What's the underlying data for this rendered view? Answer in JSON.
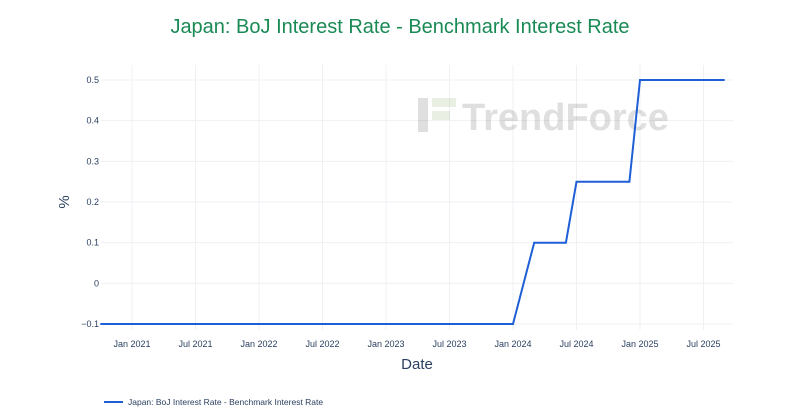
{
  "chart_data": {
    "type": "line",
    "title": "Japan: BoJ Interest Rate - Benchmark Interest Rate",
    "xlabel": "Date",
    "ylabel": "%",
    "ylim": [
      -0.1,
      0.5
    ],
    "xlim": [
      "2020-10",
      "2025-09"
    ],
    "grid": true,
    "legend_position": "bottom-left",
    "yticks": [
      "−0.1",
      "0",
      "0.1",
      "0.2",
      "0.3",
      "0.4",
      "0.5"
    ],
    "ytick_values": [
      -0.1,
      0,
      0.1,
      0.2,
      0.3,
      0.4,
      0.5
    ],
    "xticks": [
      "Jan 2021",
      "Jul 2021",
      "Jan 2022",
      "Jul 2022",
      "Jan 2023",
      "Jul 2023",
      "Jan 2024",
      "Jul 2024",
      "Jan 2025",
      "Jul 2025"
    ],
    "xtick_values": [
      "2021-01",
      "2021-07",
      "2022-01",
      "2022-07",
      "2023-01",
      "2023-07",
      "2024-01",
      "2024-07",
      "2025-01",
      "2025-07"
    ],
    "series": [
      {
        "name": "Japan: BoJ Interest Rate - Benchmark Interest Rate",
        "color": "#1f5fd6",
        "x": [
          "2020-10",
          "2024-01",
          "2024-03",
          "2024-06",
          "2024-07",
          "2024-12",
          "2025-01",
          "2025-09"
        ],
        "y": [
          -0.1,
          -0.1,
          0.1,
          0.1,
          0.25,
          0.25,
          0.5,
          0.5
        ]
      }
    ]
  },
  "colors": {
    "title": "#1a8a55",
    "text": "#2a3f5f",
    "grid": "#eef0f4"
  },
  "watermark": "TrendForce"
}
